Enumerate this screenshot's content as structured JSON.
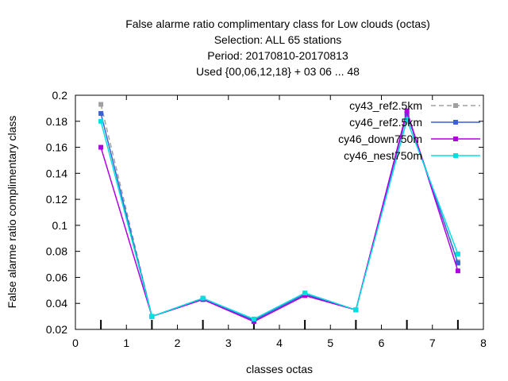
{
  "chart_data": {
    "type": "line",
    "title_lines": [
      "False alarme ratio complimentary class  for Low clouds (octas)",
      "Selection: ALL     65 stations",
      "Period: 20170810-20170813",
      "Used {00,06,12,18} + 03 06 ... 48"
    ],
    "xlabel": "classes octas",
    "ylabel": "False alarme ratio complimentary class",
    "xlim": [
      0,
      8
    ],
    "ylim": [
      0.02,
      0.2
    ],
    "xticks": [
      "0",
      "1",
      "2",
      "3",
      "4",
      "5",
      "6",
      "7",
      "8"
    ],
    "yticks": [
      "0.02",
      "0.04",
      "0.06",
      "0.08",
      "0.1",
      "0.12",
      "0.14",
      "0.16",
      "0.18",
      "0.2"
    ],
    "grid": false,
    "legend_position": "top-right",
    "x": [
      0.5,
      1.5,
      2.5,
      3.5,
      4.5,
      5.5,
      6.5,
      7.5
    ],
    "series": [
      {
        "name": "cy43_ref2.5km",
        "color": "#a0a0a0",
        "dash": "dashed",
        "values": [
          0.193,
          0.03,
          0.044,
          0.027,
          0.047,
          0.035,
          0.185,
          0.072
        ]
      },
      {
        "name": "cy46_ref2.5km",
        "color": "#3b5fd6",
        "dash": "solid",
        "values": [
          0.186,
          0.03,
          0.043,
          0.027,
          0.047,
          0.035,
          0.186,
          0.071
        ]
      },
      {
        "name": "cy46_down750m",
        "color": "#b000e0",
        "dash": "solid",
        "values": [
          0.16,
          0.03,
          0.043,
          0.026,
          0.046,
          0.035,
          0.188,
          0.065
        ]
      },
      {
        "name": "cy46_nest750m",
        "color": "#00e0e0",
        "dash": "solid",
        "values": [
          0.18,
          0.03,
          0.044,
          0.028,
          0.048,
          0.035,
          0.181,
          0.078
        ]
      }
    ]
  }
}
